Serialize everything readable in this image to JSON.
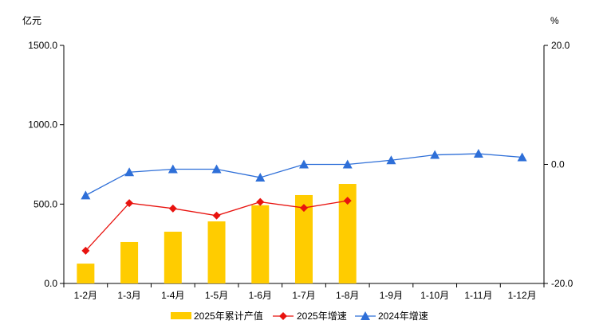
{
  "chart_data": {
    "type": "bar+line",
    "categories": [
      "1-2月",
      "1-3月",
      "1-4月",
      "1-5月",
      "1-6月",
      "1-7月",
      "1-8月",
      "1-9月",
      "1-10月",
      "1-11月",
      "1-12月"
    ],
    "left_axis": {
      "label": "亿元",
      "range": [
        0,
        1500
      ],
      "ticks": [
        "0.0",
        "500.0",
        "1000.0",
        "1500.0"
      ]
    },
    "right_axis": {
      "label": "%",
      "range": [
        -20,
        20
      ],
      "ticks": [
        "-20.0",
        "0.0",
        "20.0"
      ]
    },
    "grid": false,
    "legend_position": "bottom",
    "series": [
      {
        "name": "2025年累计产值",
        "type": "bar",
        "axis": "left",
        "color": "#FFCC00",
        "values": [
          125,
          261,
          326,
          391,
          493,
          557,
          627,
          null,
          null,
          null,
          null
        ]
      },
      {
        "name": "2025年增速",
        "type": "line",
        "axis": "right",
        "marker": "diamond",
        "color": "#E8130F",
        "values": [
          -14.5,
          -6.5,
          -7.4,
          -8.6,
          -6.3,
          -7.3,
          -6.1,
          null,
          null,
          null,
          null
        ]
      },
      {
        "name": "2024年增速",
        "type": "line",
        "axis": "right",
        "marker": "triangle",
        "color": "#2E6FD8",
        "values": [
          -5.2,
          -1.3,
          -0.8,
          -0.8,
          -2.2,
          0.0,
          0.0,
          0.7,
          1.6,
          1.8,
          1.2
        ]
      }
    ]
  }
}
